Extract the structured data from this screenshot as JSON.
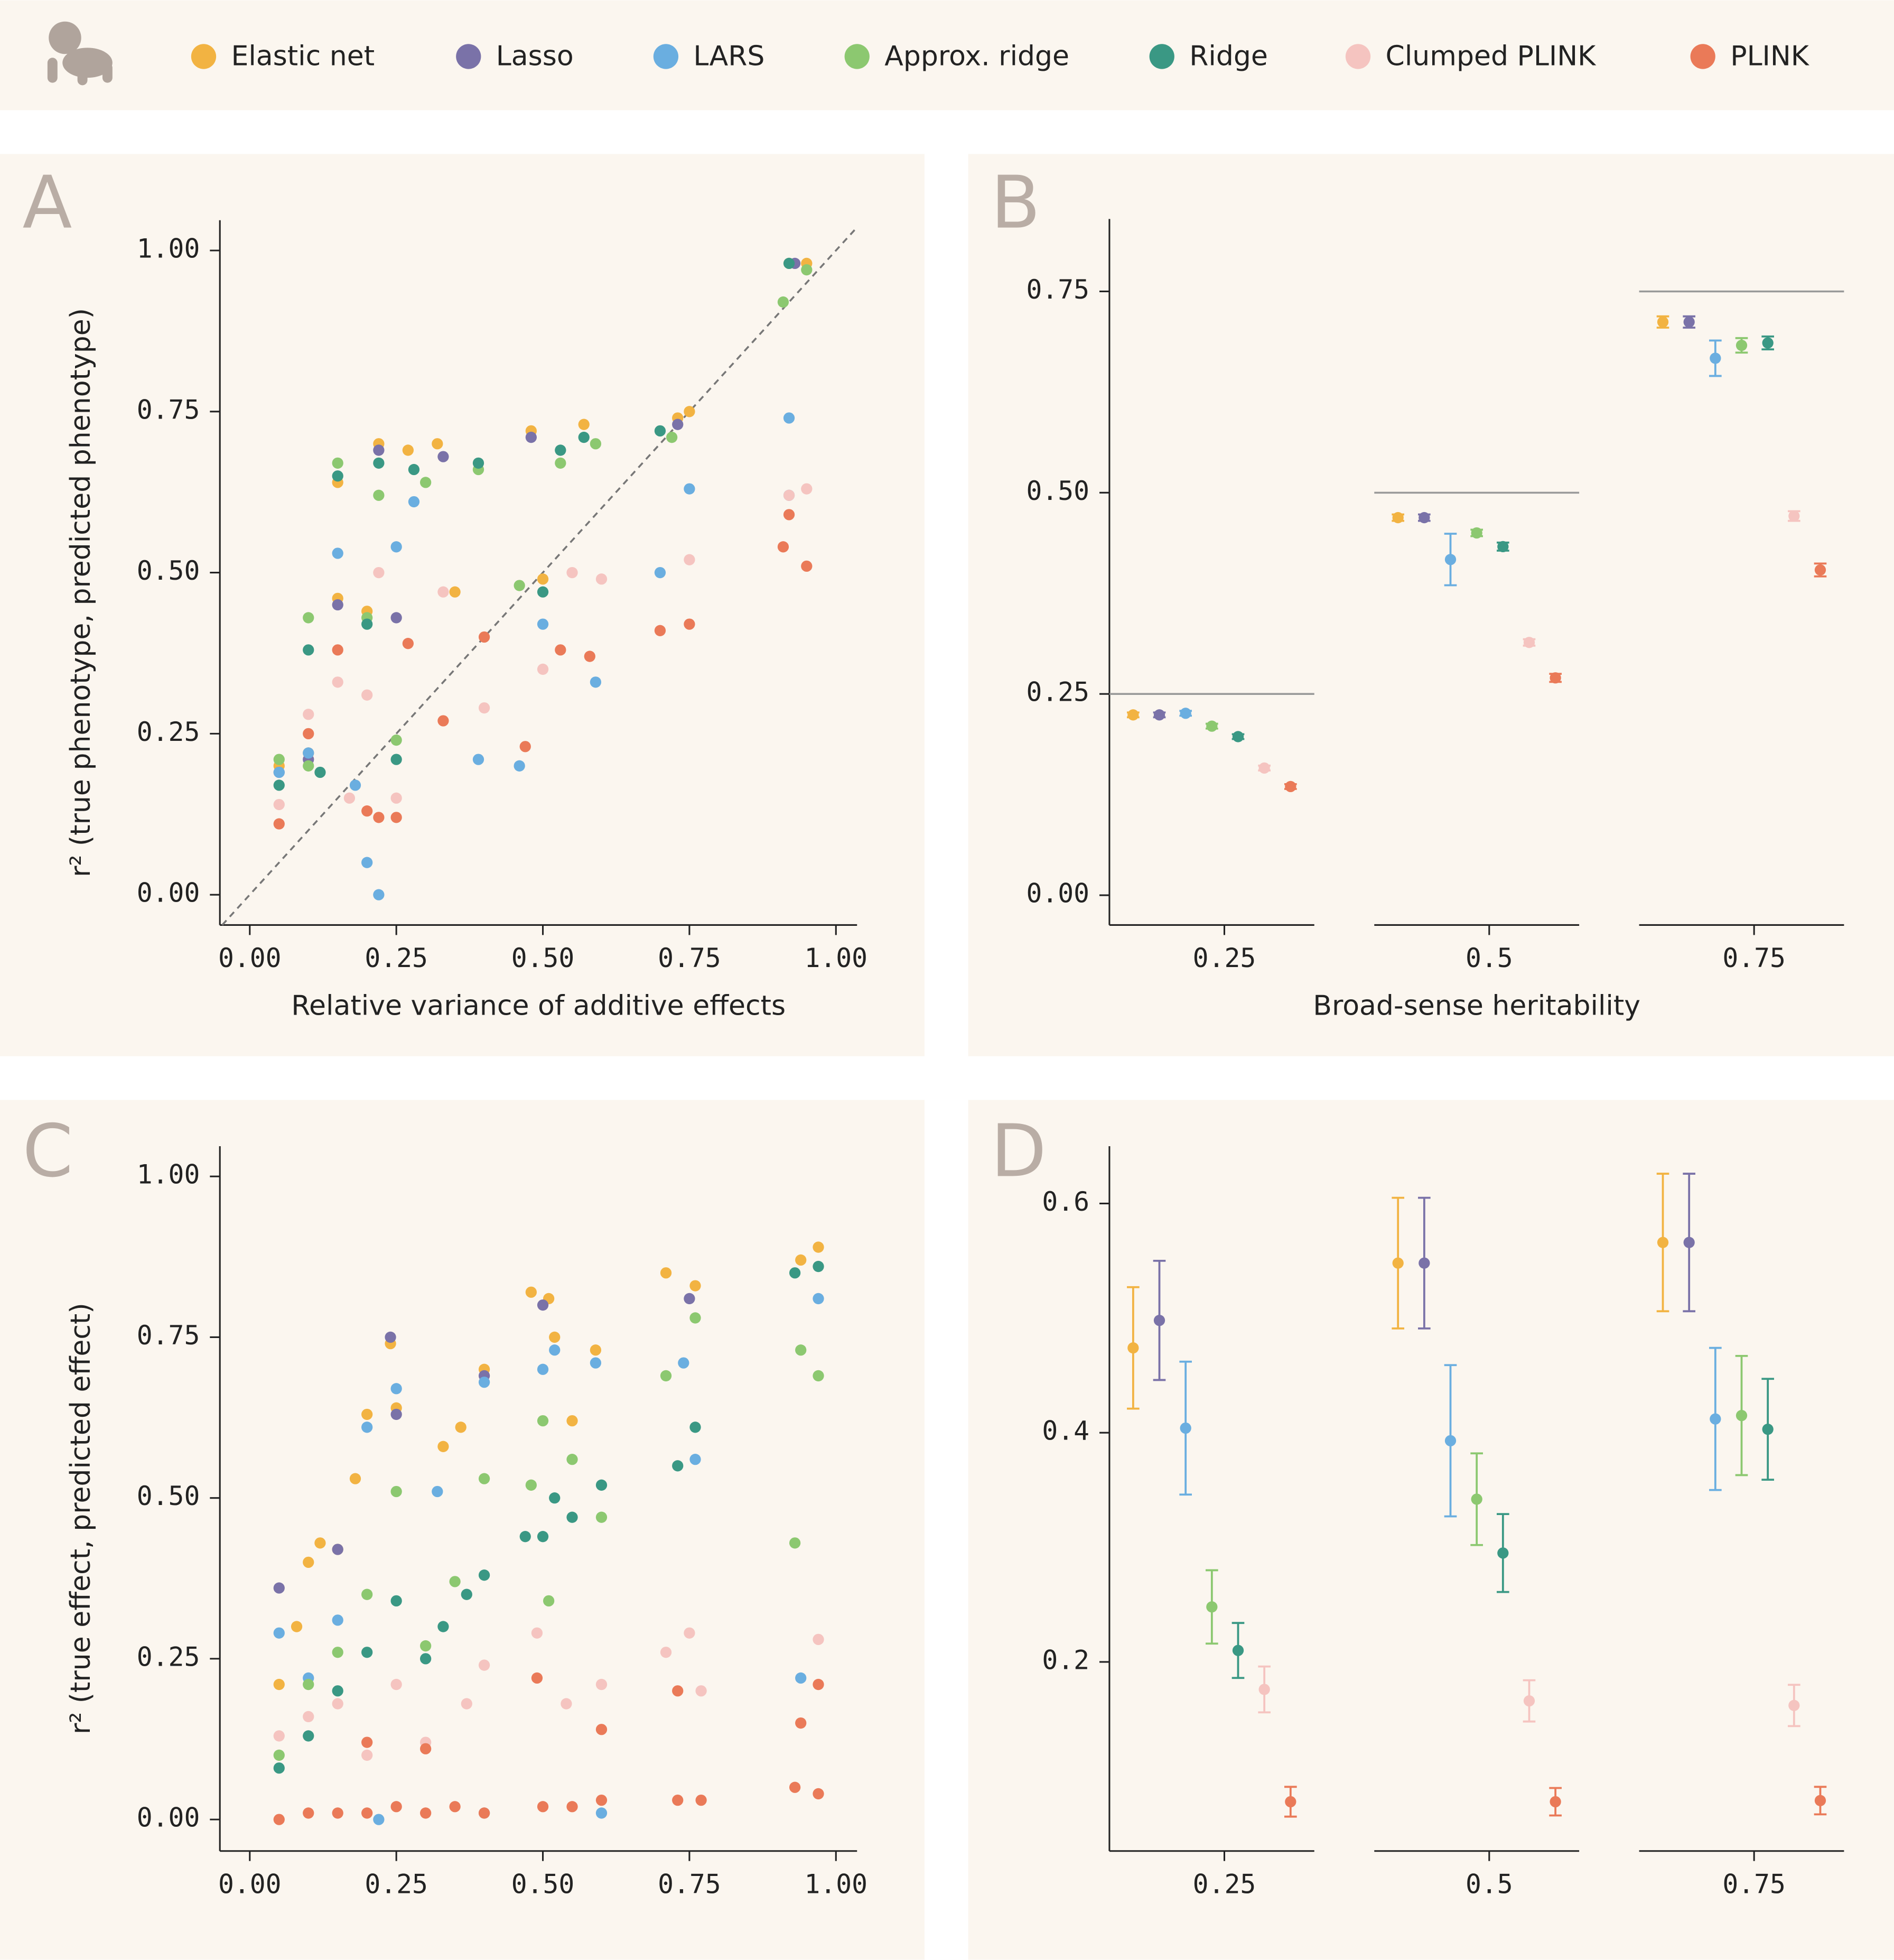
{
  "chart_data": [
    {
      "type": "scatter",
      "label": "A",
      "x_label": "Relative variance of additive effects",
      "y_label": "r² (true phenotype, predicted phenotype)",
      "xlim": [
        -0.051,
        1.036
      ],
      "ylim": [
        -0.047,
        1.047
      ],
      "xticks": [
        {
          "value": 0,
          "label": "0.00"
        },
        {
          "value": 0.25,
          "label": "0.25"
        },
        {
          "value": 0.5,
          "label": "0.50"
        },
        {
          "value": 0.75,
          "label": "0.75"
        },
        {
          "value": 1,
          "label": "1.00"
        }
      ],
      "yticks": [
        {
          "value": 0,
          "label": "0.00"
        },
        {
          "value": 0.25,
          "label": "0.25"
        },
        {
          "value": 0.5,
          "label": "0.50"
        },
        {
          "value": 0.75,
          "label": "0.75"
        },
        {
          "value": 1,
          "label": "1.00"
        }
      ],
      "identity_line": true,
      "series": [
        {
          "name": "Elastic net",
          "color": "#f2b342",
          "x": [
            0.05,
            0.1,
            0.15,
            0.15,
            0.22,
            0.27,
            0.32,
            0.35,
            0.48,
            0.5,
            0.57,
            0.73,
            0.75,
            0.92,
            0.95,
            0.2
          ],
          "values": [
            0.2,
            0.22,
            0.46,
            0.64,
            0.7,
            0.69,
            0.7,
            0.47,
            0.72,
            0.49,
            0.73,
            0.74,
            0.75,
            0.98,
            0.98,
            0.44
          ]
        },
        {
          "name": "Lasso",
          "color": "#7a72a8",
          "x": [
            0.05,
            0.1,
            0.15,
            0.22,
            0.33,
            0.48,
            0.73,
            0.93,
            0.25
          ],
          "values": [
            0.19,
            0.21,
            0.45,
            0.69,
            0.68,
            0.71,
            0.73,
            0.98,
            0.43
          ]
        },
        {
          "name": "LARS",
          "color": "#6aaee0",
          "x": [
            0.05,
            0.1,
            0.15,
            0.2,
            0.22,
            0.25,
            0.28,
            0.39,
            0.46,
            0.5,
            0.59,
            0.7,
            0.75,
            0.92,
            0.92,
            0.18
          ],
          "values": [
            0.19,
            0.22,
            0.53,
            0.05,
            0.0,
            0.54,
            0.61,
            0.21,
            0.2,
            0.42,
            0.33,
            0.5,
            0.63,
            0.74,
            0.62,
            0.17
          ]
        },
        {
          "name": "Approx. ridge",
          "color": "#8cc870",
          "x": [
            0.05,
            0.1,
            0.15,
            0.2,
            0.22,
            0.25,
            0.3,
            0.39,
            0.46,
            0.53,
            0.59,
            0.72,
            0.91,
            0.95,
            0.1
          ],
          "values": [
            0.21,
            0.43,
            0.67,
            0.43,
            0.62,
            0.24,
            0.64,
            0.66,
            0.48,
            0.67,
            0.7,
            0.71,
            0.92,
            0.97,
            0.2
          ]
        },
        {
          "name": "Ridge",
          "color": "#3a9884",
          "x": [
            0.05,
            0.1,
            0.15,
            0.2,
            0.22,
            0.25,
            0.28,
            0.39,
            0.5,
            0.53,
            0.57,
            0.7,
            0.92,
            0.12
          ],
          "values": [
            0.17,
            0.38,
            0.65,
            0.42,
            0.67,
            0.21,
            0.66,
            0.67,
            0.47,
            0.69,
            0.71,
            0.72,
            0.98,
            0.19
          ]
        },
        {
          "name": "Clumped PLINK",
          "color": "#f5c4c0",
          "x": [
            0.05,
            0.1,
            0.15,
            0.2,
            0.22,
            0.25,
            0.33,
            0.4,
            0.5,
            0.55,
            0.6,
            0.75,
            0.92,
            0.95,
            0.17
          ],
          "values": [
            0.14,
            0.28,
            0.33,
            0.31,
            0.5,
            0.15,
            0.47,
            0.29,
            0.35,
            0.5,
            0.49,
            0.52,
            0.62,
            0.63,
            0.15
          ]
        },
        {
          "name": "PLINK",
          "color": "#ea7a58",
          "x": [
            0.05,
            0.1,
            0.15,
            0.2,
            0.22,
            0.25,
            0.27,
            0.33,
            0.4,
            0.47,
            0.53,
            0.58,
            0.7,
            0.75,
            0.91,
            0.92,
            0.95
          ],
          "values": [
            0.11,
            0.25,
            0.38,
            0.13,
            0.12,
            0.12,
            0.39,
            0.27,
            0.4,
            0.23,
            0.38,
            0.37,
            0.41,
            0.42,
            0.54,
            0.59,
            0.51
          ]
        }
      ]
    },
    {
      "type": "errorbar",
      "label": "B",
      "x_label": "Broad-sense heritability",
      "categories": [
        "0.25",
        "0.5",
        "0.75"
      ],
      "ylim": [
        -0.037,
        0.84
      ],
      "yticks": [
        {
          "value": 0,
          "label": "0.00"
        },
        {
          "value": 0.25,
          "label": "0.25"
        },
        {
          "value": 0.5,
          "label": "0.50"
        },
        {
          "value": 0.75,
          "label": "0.75"
        }
      ],
      "reference_lines": [
        0.25,
        0.5,
        0.75
      ],
      "series": [
        {
          "name": "Elastic net",
          "color": "#f2b342",
          "values": [
            0.224,
            0.469,
            0.712
          ],
          "errors": [
            0.003,
            0.004,
            0.007
          ]
        },
        {
          "name": "Lasso",
          "color": "#7a72a8",
          "values": [
            0.224,
            0.469,
            0.712
          ],
          "errors": [
            0.003,
            0.004,
            0.007
          ]
        },
        {
          "name": "LARS",
          "color": "#6aaee0",
          "values": [
            0.226,
            0.417,
            0.667
          ],
          "errors": [
            0.003,
            0.032,
            0.022
          ]
        },
        {
          "name": "Approx. ridge",
          "color": "#8cc870",
          "values": [
            0.21,
            0.45,
            0.683
          ],
          "errors": [
            0.003,
            0.004,
            0.009
          ]
        },
        {
          "name": "Ridge",
          "color": "#3a9884",
          "values": [
            0.197,
            0.433,
            0.686
          ],
          "errors": [
            0.003,
            0.005,
            0.008
          ]
        },
        {
          "name": "Clumped PLINK",
          "color": "#f5c4c0",
          "values": [
            0.158,
            0.314,
            0.471
          ],
          "errors": [
            0.003,
            0.004,
            0.006
          ]
        },
        {
          "name": "PLINK",
          "color": "#ea7a58",
          "values": [
            0.135,
            0.27,
            0.404
          ],
          "errors": [
            0.003,
            0.005,
            0.008
          ]
        }
      ]
    },
    {
      "type": "scatter",
      "label": "C",
      "y_label": "r² (true effect, predicted effect)",
      "xlim": [
        -0.051,
        1.036
      ],
      "ylim": [
        -0.049,
        1.047
      ],
      "xticks": [
        {
          "value": 0,
          "label": "0.00"
        },
        {
          "value": 0.25,
          "label": "0.25"
        },
        {
          "value": 0.5,
          "label": "0.50"
        },
        {
          "value": 0.75,
          "label": "0.75"
        },
        {
          "value": 1,
          "label": "1.00"
        }
      ],
      "yticks": [
        {
          "value": 0,
          "label": "0.00"
        },
        {
          "value": 0.25,
          "label": "0.25"
        },
        {
          "value": 0.5,
          "label": "0.50"
        },
        {
          "value": 0.75,
          "label": "0.75"
        },
        {
          "value": 1,
          "label": "1.00"
        }
      ],
      "identity_line": false,
      "series": [
        {
          "name": "Elastic net",
          "color": "#f2b342",
          "x": [
            0.05,
            0.08,
            0.1,
            0.12,
            0.15,
            0.18,
            0.2,
            0.24,
            0.25,
            0.33,
            0.36,
            0.4,
            0.48,
            0.51,
            0.52,
            0.55,
            0.59,
            0.71,
            0.76,
            0.94,
            0.97
          ],
          "values": [
            0.21,
            0.3,
            0.4,
            0.43,
            0.42,
            0.53,
            0.63,
            0.74,
            0.64,
            0.58,
            0.61,
            0.7,
            0.82,
            0.81,
            0.75,
            0.62,
            0.73,
            0.85,
            0.83,
            0.87,
            0.89
          ]
        },
        {
          "name": "Lasso",
          "color": "#7a72a8",
          "x": [
            0.05,
            0.24,
            0.25,
            0.15,
            0.4,
            0.5,
            0.75
          ],
          "values": [
            0.36,
            0.75,
            0.63,
            0.42,
            0.69,
            0.8,
            0.81
          ]
        },
        {
          "name": "LARS",
          "color": "#6aaee0",
          "x": [
            0.05,
            0.1,
            0.15,
            0.2,
            0.25,
            0.32,
            0.4,
            0.5,
            0.52,
            0.59,
            0.74,
            0.76,
            0.97,
            0.94,
            0.22,
            0.4,
            0.6
          ],
          "values": [
            0.29,
            0.22,
            0.31,
            0.61,
            0.67,
            0.51,
            0.68,
            0.7,
            0.73,
            0.71,
            0.71,
            0.56,
            0.81,
            0.22,
            0.0,
            0.01,
            0.01
          ]
        },
        {
          "name": "Approx. ridge",
          "color": "#8cc870",
          "x": [
            0.05,
            0.1,
            0.15,
            0.2,
            0.25,
            0.3,
            0.35,
            0.4,
            0.48,
            0.5,
            0.51,
            0.55,
            0.6,
            0.71,
            0.76,
            0.93,
            0.94,
            0.97
          ],
          "values": [
            0.1,
            0.21,
            0.26,
            0.35,
            0.51,
            0.27,
            0.37,
            0.53,
            0.52,
            0.62,
            0.34,
            0.56,
            0.47,
            0.69,
            0.78,
            0.43,
            0.73,
            0.69
          ]
        },
        {
          "name": "Ridge",
          "color": "#3a9884",
          "x": [
            0.05,
            0.1,
            0.15,
            0.2,
            0.25,
            0.3,
            0.33,
            0.37,
            0.4,
            0.47,
            0.5,
            0.52,
            0.55,
            0.6,
            0.73,
            0.76,
            0.93,
            0.97
          ],
          "values": [
            0.08,
            0.13,
            0.2,
            0.26,
            0.34,
            0.25,
            0.3,
            0.35,
            0.38,
            0.44,
            0.44,
            0.5,
            0.47,
            0.52,
            0.55,
            0.61,
            0.85,
            0.86
          ]
        },
        {
          "name": "Clumped PLINK",
          "color": "#f5c4c0",
          "x": [
            0.05,
            0.1,
            0.15,
            0.2,
            0.25,
            0.3,
            0.37,
            0.4,
            0.49,
            0.54,
            0.6,
            0.71,
            0.75,
            0.77,
            0.97
          ],
          "values": [
            0.13,
            0.16,
            0.18,
            0.1,
            0.21,
            0.12,
            0.18,
            0.24,
            0.29,
            0.18,
            0.21,
            0.26,
            0.29,
            0.2,
            0.28
          ]
        },
        {
          "name": "PLINK",
          "color": "#ea7a58",
          "x": [
            0.05,
            0.1,
            0.15,
            0.2,
            0.25,
            0.3,
            0.35,
            0.4,
            0.5,
            0.55,
            0.6,
            0.73,
            0.77,
            0.93,
            0.97,
            0.2,
            0.3,
            0.49,
            0.6,
            0.73,
            0.97,
            0.94
          ],
          "values": [
            0.0,
            0.01,
            0.01,
            0.01,
            0.02,
            0.01,
            0.02,
            0.01,
            0.02,
            0.02,
            0.03,
            0.03,
            0.03,
            0.05,
            0.04,
            0.12,
            0.11,
            0.22,
            0.14,
            0.2,
            0.21,
            0.15
          ]
        }
      ]
    },
    {
      "type": "errorbar",
      "label": "D",
      "categories": [
        "0.25",
        "0.5",
        "0.75"
      ],
      "ylim": [
        0.035,
        0.65
      ],
      "yticks": [
        0.2,
        0.4,
        0.6
      ],
      "series": [
        {
          "name": "Elastic net",
          "color": "#f2b342",
          "values": [
            0.474,
            0.548,
            0.566
          ],
          "errors": [
            0.053,
            0.057,
            0.06
          ]
        },
        {
          "name": "Lasso",
          "color": "#7a72a8",
          "values": [
            0.498,
            0.548,
            0.566
          ],
          "errors": [
            0.052,
            0.057,
            0.06
          ]
        },
        {
          "name": "LARS",
          "color": "#6aaee0",
          "values": [
            0.404,
            0.393,
            0.412
          ],
          "errors": [
            0.058,
            0.066,
            0.062
          ]
        },
        {
          "name": "Approx. ridge",
          "color": "#8cc870",
          "values": [
            0.248,
            0.342,
            0.415
          ],
          "errors": [
            0.032,
            0.04,
            0.052
          ]
        },
        {
          "name": "Ridge",
          "color": "#3a9884",
          "values": [
            0.21,
            0.295,
            0.403
          ],
          "errors": [
            0.024,
            0.034,
            0.044
          ]
        },
        {
          "name": "Clumped PLINK",
          "color": "#f5c4c0",
          "values": [
            0.176,
            0.166,
            0.162
          ],
          "errors": [
            0.02,
            0.018,
            0.018
          ]
        },
        {
          "name": "PLINK",
          "color": "#ea7a58",
          "values": [
            0.078,
            0.078,
            0.079
          ],
          "errors": [
            0.013,
            0.012,
            0.012
          ]
        }
      ]
    }
  ]
}
